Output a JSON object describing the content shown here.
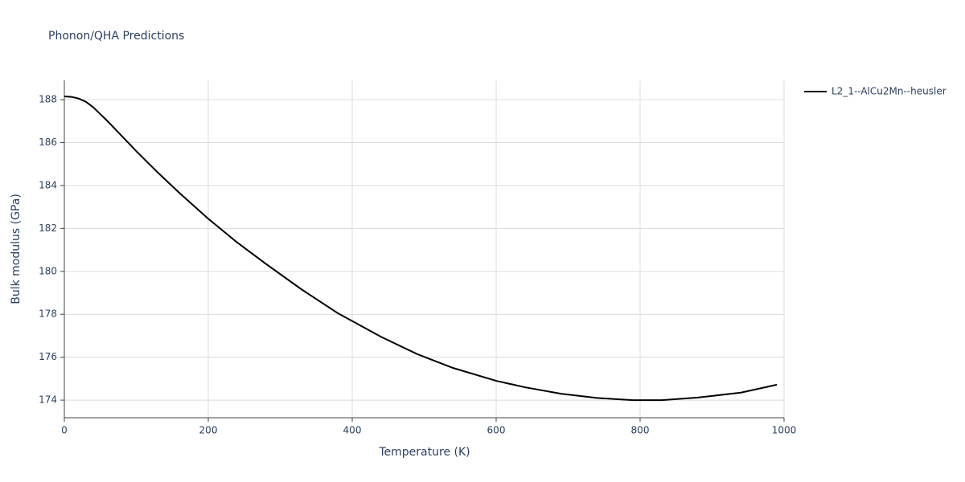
{
  "chart_data": {
    "type": "line",
    "title": "Phonon/QHA Predictions",
    "x_label": "Temperature (K)",
    "y_label": "Bulk modulus (GPa)",
    "x": [
      0,
      10,
      20,
      30,
      40,
      60,
      80,
      100,
      130,
      160,
      200,
      240,
      280,
      330,
      380,
      440,
      490,
      540,
      600,
      640,
      690,
      740,
      790,
      830,
      880,
      940,
      990
    ],
    "series": [
      {
        "name": "L2_1--AlCu2Mn--heusler",
        "color": "#000000",
        "values": [
          188.15,
          188.13,
          188.05,
          187.9,
          187.65,
          187.0,
          186.3,
          185.6,
          184.6,
          183.65,
          182.45,
          181.35,
          180.35,
          179.15,
          178.05,
          176.95,
          176.15,
          175.5,
          174.9,
          174.6,
          174.3,
          174.1,
          174.0,
          174.0,
          174.12,
          174.35,
          174.72
        ]
      }
    ],
    "xlim": [
      0,
      1000
    ],
    "xticks": [
      0,
      200,
      400,
      600,
      800,
      1000
    ],
    "ylim": [
      173.18,
      188.9
    ],
    "yticks": [
      174,
      176,
      178,
      180,
      182,
      184,
      186,
      188
    ],
    "grid": true,
    "legend_position": "right"
  }
}
